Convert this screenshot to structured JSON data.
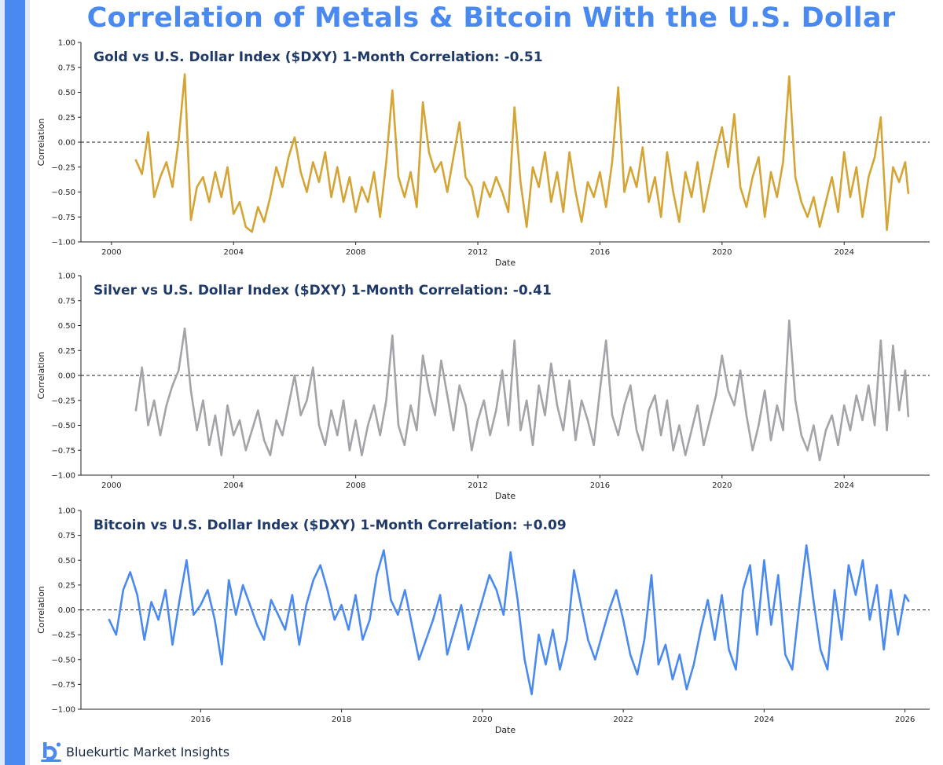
{
  "page": {
    "title": "Correlation of Metals & Bitcoin With the U.S. Dollar",
    "brand": "Bluekurtic Market Insights",
    "colors": {
      "accent": "#4a8af0",
      "title_text": "#1f3a68"
    }
  },
  "chart_data": [
    {
      "type": "line",
      "title": "Gold vs U.S. Dollar Index ($DXY) 1-Month Correlation: -0.51",
      "xlabel": "Date",
      "ylabel": "Correlation",
      "xlim": [
        1999.0,
        2026.8
      ],
      "ylim": [
        -1.0,
        1.0
      ],
      "xticks": [
        2000,
        2004,
        2008,
        2012,
        2016,
        2020,
        2024
      ],
      "yticks": [
        1.0,
        0.75,
        0.5,
        0.25,
        0.0,
        -0.25,
        -0.5,
        -0.75,
        -1.0
      ],
      "ytick_labels": [
        "1.00",
        "0.75",
        "0.50",
        "0.25",
        "0.00",
        "−0.25",
        "−0.50",
        "−0.75",
        "−1.00"
      ],
      "zero_line": true,
      "grid": false,
      "series": [
        {
          "color": "#d4a535",
          "x": [
            2000.8,
            2001.0,
            2001.2,
            2001.4,
            2001.6,
            2001.8,
            2002.0,
            2002.2,
            2002.4,
            2002.6,
            2002.8,
            2003.0,
            2003.2,
            2003.4,
            2003.6,
            2003.8,
            2004.0,
            2004.2,
            2004.4,
            2004.6,
            2004.8,
            2005.0,
            2005.2,
            2005.4,
            2005.6,
            2005.8,
            2006.0,
            2006.2,
            2006.4,
            2006.6,
            2006.8,
            2007.0,
            2007.2,
            2007.4,
            2007.6,
            2007.8,
            2008.0,
            2008.2,
            2008.4,
            2008.6,
            2008.8,
            2009.0,
            2009.2,
            2009.4,
            2009.6,
            2009.8,
            2010.0,
            2010.2,
            2010.4,
            2010.6,
            2010.8,
            2011.0,
            2011.2,
            2011.4,
            2011.6,
            2011.8,
            2012.0,
            2012.2,
            2012.4,
            2012.6,
            2012.8,
            2013.0,
            2013.2,
            2013.4,
            2013.6,
            2013.8,
            2014.0,
            2014.2,
            2014.4,
            2014.6,
            2014.8,
            2015.0,
            2015.2,
            2015.4,
            2015.6,
            2015.8,
            2016.0,
            2016.2,
            2016.4,
            2016.6,
            2016.8,
            2017.0,
            2017.2,
            2017.4,
            2017.6,
            2017.8,
            2018.0,
            2018.2,
            2018.4,
            2018.6,
            2018.8,
            2019.0,
            2019.2,
            2019.4,
            2019.6,
            2019.8,
            2020.0,
            2020.2,
            2020.4,
            2020.6,
            2020.8,
            2021.0,
            2021.2,
            2021.4,
            2021.6,
            2021.8,
            2022.0,
            2022.2,
            2022.4,
            2022.6,
            2022.8,
            2023.0,
            2023.2,
            2023.4,
            2023.6,
            2023.8,
            2024.0,
            2024.2,
            2024.4,
            2024.6,
            2024.8,
            2025.0,
            2025.2,
            2025.4,
            2025.6,
            2025.8,
            2026.0,
            2026.1
          ],
          "y": [
            -0.18,
            -0.32,
            0.1,
            -0.55,
            -0.35,
            -0.2,
            -0.45,
            0.02,
            0.68,
            -0.78,
            -0.45,
            -0.35,
            -0.6,
            -0.3,
            -0.55,
            -0.25,
            -0.72,
            -0.6,
            -0.85,
            -0.9,
            -0.65,
            -0.8,
            -0.55,
            -0.25,
            -0.45,
            -0.15,
            0.05,
            -0.3,
            -0.5,
            -0.2,
            -0.4,
            -0.1,
            -0.55,
            -0.25,
            -0.6,
            -0.35,
            -0.7,
            -0.45,
            -0.6,
            -0.3,
            -0.75,
            -0.2,
            0.52,
            -0.35,
            -0.55,
            -0.3,
            -0.65,
            0.4,
            -0.1,
            -0.3,
            -0.2,
            -0.5,
            -0.15,
            0.2,
            -0.35,
            -0.45,
            -0.75,
            -0.4,
            -0.55,
            -0.35,
            -0.5,
            -0.7,
            0.35,
            -0.4,
            -0.85,
            -0.25,
            -0.45,
            -0.1,
            -0.6,
            -0.3,
            -0.7,
            -0.1,
            -0.5,
            -0.8,
            -0.4,
            -0.55,
            -0.3,
            -0.65,
            -0.2,
            0.55,
            -0.5,
            -0.25,
            -0.45,
            -0.05,
            -0.6,
            -0.35,
            -0.75,
            -0.1,
            -0.5,
            -0.8,
            -0.3,
            -0.55,
            -0.2,
            -0.7,
            -0.4,
            -0.1,
            0.15,
            -0.25,
            0.28,
            -0.45,
            -0.65,
            -0.35,
            -0.15,
            -0.75,
            -0.3,
            -0.55,
            -0.2,
            0.66,
            -0.35,
            -0.6,
            -0.75,
            -0.55,
            -0.85,
            -0.6,
            -0.35,
            -0.7,
            -0.1,
            -0.55,
            -0.25,
            -0.75,
            -0.35,
            -0.15,
            0.25,
            -0.88,
            -0.25,
            -0.4,
            -0.2,
            -0.51
          ]
        }
      ]
    },
    {
      "type": "line",
      "title": "Silver vs U.S. Dollar Index ($DXY) 1-Month Correlation: -0.41",
      "xlabel": "Date",
      "ylabel": "Correlation",
      "xlim": [
        1999.0,
        2026.8
      ],
      "ylim": [
        -1.0,
        1.0
      ],
      "xticks": [
        2000,
        2004,
        2008,
        2012,
        2016,
        2020,
        2024
      ],
      "yticks": [
        1.0,
        0.75,
        0.5,
        0.25,
        0.0,
        -0.25,
        -0.5,
        -0.75,
        -1.0
      ],
      "ytick_labels": [
        "1.00",
        "0.75",
        "0.50",
        "0.25",
        "0.00",
        "−0.25",
        "−0.50",
        "−0.75",
        "−1.00"
      ],
      "zero_line": true,
      "grid": false,
      "series": [
        {
          "color": "#a2a4a8",
          "x": [
            2000.8,
            2001.0,
            2001.2,
            2001.4,
            2001.6,
            2001.8,
            2002.0,
            2002.2,
            2002.4,
            2002.6,
            2002.8,
            2003.0,
            2003.2,
            2003.4,
            2003.6,
            2003.8,
            2004.0,
            2004.2,
            2004.4,
            2004.6,
            2004.8,
            2005.0,
            2005.2,
            2005.4,
            2005.6,
            2005.8,
            2006.0,
            2006.2,
            2006.4,
            2006.6,
            2006.8,
            2007.0,
            2007.2,
            2007.4,
            2007.6,
            2007.8,
            2008.0,
            2008.2,
            2008.4,
            2008.6,
            2008.8,
            2009.0,
            2009.2,
            2009.4,
            2009.6,
            2009.8,
            2010.0,
            2010.2,
            2010.4,
            2010.6,
            2010.8,
            2011.0,
            2011.2,
            2011.4,
            2011.6,
            2011.8,
            2012.0,
            2012.2,
            2012.4,
            2012.6,
            2012.8,
            2013.0,
            2013.2,
            2013.4,
            2013.6,
            2013.8,
            2014.0,
            2014.2,
            2014.4,
            2014.6,
            2014.8,
            2015.0,
            2015.2,
            2015.4,
            2015.6,
            2015.8,
            2016.0,
            2016.2,
            2016.4,
            2016.6,
            2016.8,
            2017.0,
            2017.2,
            2017.4,
            2017.6,
            2017.8,
            2018.0,
            2018.2,
            2018.4,
            2018.6,
            2018.8,
            2019.0,
            2019.2,
            2019.4,
            2019.6,
            2019.8,
            2020.0,
            2020.2,
            2020.4,
            2020.6,
            2020.8,
            2021.0,
            2021.2,
            2021.4,
            2021.6,
            2021.8,
            2022.0,
            2022.2,
            2022.4,
            2022.6,
            2022.8,
            2023.0,
            2023.2,
            2023.4,
            2023.6,
            2023.8,
            2024.0,
            2024.2,
            2024.4,
            2024.6,
            2024.8,
            2025.0,
            2025.2,
            2025.4,
            2025.6,
            2025.8,
            2026.0,
            2026.1
          ],
          "y": [
            -0.35,
            0.08,
            -0.5,
            -0.25,
            -0.6,
            -0.3,
            -0.1,
            0.05,
            0.47,
            -0.15,
            -0.55,
            -0.25,
            -0.7,
            -0.4,
            -0.8,
            -0.3,
            -0.6,
            -0.45,
            -0.75,
            -0.55,
            -0.35,
            -0.65,
            -0.8,
            -0.45,
            -0.6,
            -0.3,
            0.0,
            -0.4,
            -0.25,
            0.08,
            -0.5,
            -0.7,
            -0.35,
            -0.6,
            -0.25,
            -0.75,
            -0.45,
            -0.8,
            -0.5,
            -0.3,
            -0.6,
            -0.25,
            0.4,
            -0.5,
            -0.7,
            -0.3,
            -0.55,
            0.2,
            -0.15,
            -0.4,
            0.15,
            -0.2,
            -0.55,
            -0.1,
            -0.3,
            -0.75,
            -0.45,
            -0.25,
            -0.6,
            -0.35,
            0.05,
            -0.5,
            0.35,
            -0.55,
            -0.25,
            -0.7,
            -0.1,
            -0.4,
            0.12,
            -0.3,
            -0.55,
            -0.05,
            -0.65,
            -0.25,
            -0.45,
            -0.7,
            -0.15,
            0.35,
            -0.4,
            -0.6,
            -0.3,
            -0.1,
            -0.55,
            -0.75,
            -0.35,
            -0.2,
            -0.6,
            -0.25,
            -0.75,
            -0.5,
            -0.8,
            -0.55,
            -0.3,
            -0.7,
            -0.45,
            -0.2,
            0.2,
            -0.15,
            -0.3,
            0.05,
            -0.4,
            -0.75,
            -0.5,
            -0.15,
            -0.65,
            -0.3,
            -0.55,
            0.55,
            -0.25,
            -0.6,
            -0.75,
            -0.5,
            -0.85,
            -0.55,
            -0.4,
            -0.7,
            -0.3,
            -0.55,
            -0.2,
            -0.45,
            -0.1,
            -0.5,
            0.35,
            -0.55,
            0.3,
            -0.35,
            0.05,
            -0.41
          ]
        }
      ]
    },
    {
      "type": "line",
      "title": "Bitcoin vs U.S. Dollar Index ($DXY) 1-Month Correlation: +0.09",
      "xlabel": "Date",
      "ylabel": "Correlation",
      "xlim": [
        2014.3,
        2026.35
      ],
      "ylim": [
        -1.0,
        1.0
      ],
      "xticks": [
        2016,
        2018,
        2020,
        2022,
        2024,
        2026
      ],
      "yticks": [
        1.0,
        0.75,
        0.5,
        0.25,
        0.0,
        -0.25,
        -0.5,
        -0.75,
        -1.0
      ],
      "ytick_labels": [
        "1.00",
        "0.75",
        "0.50",
        "0.25",
        "0.00",
        "−0.25",
        "−0.50",
        "−0.75",
        "−1.00"
      ],
      "zero_line": true,
      "grid": false,
      "series": [
        {
          "color": "#4a8af0",
          "x": [
            2014.7,
            2014.8,
            2014.9,
            2015.0,
            2015.1,
            2015.2,
            2015.3,
            2015.4,
            2015.5,
            2015.6,
            2015.7,
            2015.8,
            2015.9,
            2016.0,
            2016.1,
            2016.2,
            2016.3,
            2016.4,
            2016.5,
            2016.6,
            2016.7,
            2016.8,
            2016.9,
            2017.0,
            2017.1,
            2017.2,
            2017.3,
            2017.4,
            2017.5,
            2017.6,
            2017.7,
            2017.8,
            2017.9,
            2018.0,
            2018.1,
            2018.2,
            2018.3,
            2018.4,
            2018.5,
            2018.6,
            2018.7,
            2018.8,
            2018.9,
            2019.0,
            2019.1,
            2019.2,
            2019.3,
            2019.4,
            2019.5,
            2019.6,
            2019.7,
            2019.8,
            2019.9,
            2020.0,
            2020.1,
            2020.2,
            2020.3,
            2020.4,
            2020.5,
            2020.6,
            2020.7,
            2020.8,
            2020.9,
            2021.0,
            2021.1,
            2021.2,
            2021.3,
            2021.4,
            2021.5,
            2021.6,
            2021.7,
            2021.8,
            2021.9,
            2022.0,
            2022.1,
            2022.2,
            2022.3,
            2022.4,
            2022.5,
            2022.6,
            2022.7,
            2022.8,
            2022.9,
            2023.0,
            2023.1,
            2023.2,
            2023.3,
            2023.4,
            2023.5,
            2023.6,
            2023.7,
            2023.8,
            2023.9,
            2024.0,
            2024.1,
            2024.2,
            2024.3,
            2024.4,
            2024.5,
            2024.6,
            2024.7,
            2024.8,
            2024.9,
            2025.0,
            2025.1,
            2025.2,
            2025.3,
            2025.4,
            2025.5,
            2025.6,
            2025.7,
            2025.8,
            2025.9,
            2026.0,
            2026.05
          ],
          "y": [
            -0.1,
            -0.25,
            0.2,
            0.38,
            0.15,
            -0.3,
            0.08,
            -0.1,
            0.2,
            -0.35,
            0.1,
            0.5,
            -0.05,
            0.05,
            0.2,
            -0.1,
            -0.55,
            0.3,
            -0.05,
            0.25,
            0.05,
            -0.15,
            -0.3,
            0.1,
            -0.05,
            -0.2,
            0.15,
            -0.35,
            0.05,
            0.3,
            0.45,
            0.2,
            -0.1,
            0.05,
            -0.2,
            0.15,
            -0.3,
            -0.1,
            0.35,
            0.6,
            0.1,
            -0.05,
            0.2,
            -0.15,
            -0.5,
            -0.3,
            -0.1,
            0.15,
            -0.45,
            -0.2,
            0.05,
            -0.4,
            -0.15,
            0.1,
            0.35,
            0.2,
            -0.05,
            0.58,
            0.1,
            -0.5,
            -0.85,
            -0.25,
            -0.55,
            -0.2,
            -0.6,
            -0.3,
            0.4,
            0.05,
            -0.3,
            -0.5,
            -0.25,
            0.0,
            0.2,
            -0.1,
            -0.45,
            -0.65,
            -0.3,
            0.35,
            -0.55,
            -0.35,
            -0.7,
            -0.45,
            -0.8,
            -0.55,
            -0.2,
            0.1,
            -0.3,
            0.15,
            -0.4,
            -0.6,
            0.2,
            0.45,
            -0.25,
            0.5,
            -0.15,
            0.35,
            -0.45,
            -0.6,
            0.05,
            0.65,
            0.1,
            -0.4,
            -0.6,
            0.2,
            -0.3,
            0.45,
            0.15,
            0.5,
            -0.1,
            0.25,
            -0.4,
            0.2,
            -0.25,
            0.15,
            0.09
          ]
        }
      ]
    }
  ]
}
